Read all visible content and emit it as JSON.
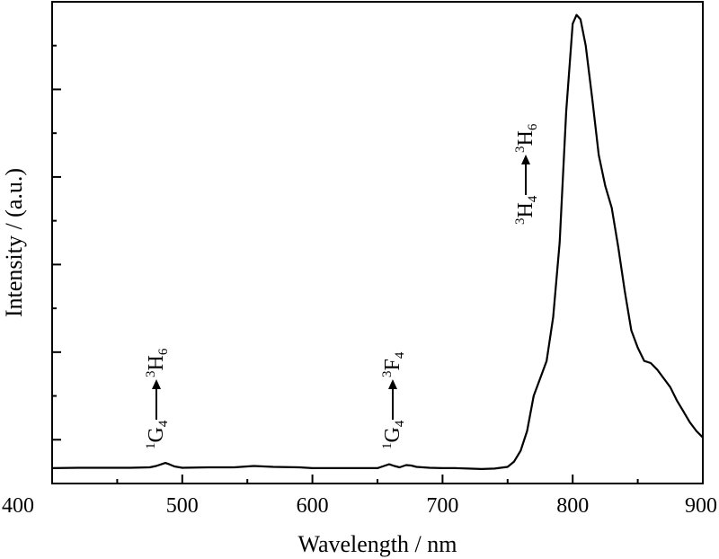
{
  "chart_data": {
    "type": "line",
    "xlabel": "Wavelength / nm",
    "ylabel": "Intensity / (a.u.)",
    "xlim": [
      400,
      900
    ],
    "ylim": [
      0,
      1.1
    ],
    "x_ticks": [
      400,
      500,
      600,
      700,
      800,
      900
    ],
    "y_major_ticks": [
      0.1,
      0.3,
      0.5,
      0.7,
      0.9
    ],
    "y_minor_ticks": [
      0.0,
      0.2,
      0.4,
      0.6,
      0.8,
      1.0
    ],
    "y_tick_labels_shown": false,
    "grid": false,
    "legend": "none",
    "colors": {
      "line": "#000000",
      "axes": "#000000"
    },
    "series": [
      {
        "x": [
          400,
          420,
          440,
          460,
          475,
          480,
          484,
          487,
          490,
          494,
          500,
          520,
          540,
          555,
          570,
          590,
          600,
          620,
          640,
          650,
          655,
          659,
          663,
          667,
          672,
          676,
          680,
          690,
          700,
          710,
          720,
          730,
          740,
          750,
          755,
          760,
          765,
          770,
          775,
          780,
          785,
          790,
          795,
          800,
          803,
          806,
          810,
          815,
          820,
          825,
          830,
          835,
          840,
          845,
          850,
          855,
          860,
          865,
          870,
          875,
          880,
          885,
          890,
          895,
          900
        ],
        "y": [
          0.035,
          0.036,
          0.036,
          0.036,
          0.037,
          0.04,
          0.044,
          0.047,
          0.044,
          0.039,
          0.036,
          0.037,
          0.037,
          0.04,
          0.038,
          0.037,
          0.035,
          0.035,
          0.035,
          0.035,
          0.04,
          0.044,
          0.04,
          0.037,
          0.042,
          0.041,
          0.038,
          0.036,
          0.035,
          0.035,
          0.034,
          0.033,
          0.034,
          0.038,
          0.05,
          0.075,
          0.12,
          0.2,
          0.24,
          0.28,
          0.38,
          0.55,
          0.85,
          1.05,
          1.07,
          1.06,
          1.0,
          0.88,
          0.75,
          0.68,
          0.63,
          0.54,
          0.44,
          0.35,
          0.31,
          0.28,
          0.275,
          0.26,
          0.24,
          0.22,
          0.19,
          0.165,
          0.14,
          0.12,
          0.105
        ]
      }
    ],
    "annotations": [
      {
        "lower": "G",
        "lower_sup": "1",
        "lower_sub": "4",
        "upper": "H",
        "upper_sup": "3",
        "upper_sub": "6",
        "x": 481
      },
      {
        "lower": "G",
        "lower_sup": "1",
        "lower_sub": "4",
        "upper": "F",
        "upper_sup": "3",
        "upper_sub": "4",
        "x": 665
      },
      {
        "lower": "H",
        "lower_sup": "3",
        "lower_sub": "4",
        "upper": "H",
        "upper_sup": "3",
        "upper_sub": "6",
        "x": 782
      }
    ]
  }
}
